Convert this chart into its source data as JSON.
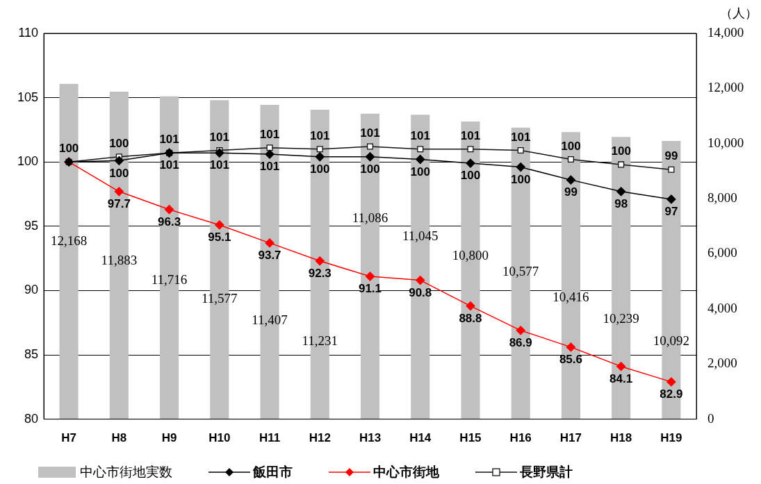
{
  "chart_data": {
    "type": "line",
    "categories": [
      "H7",
      "H8",
      "H9",
      "H10",
      "H11",
      "H12",
      "H13",
      "H14",
      "H15",
      "H16",
      "H17",
      "H18",
      "H19"
    ],
    "y2label": "（人）",
    "ylim": [
      80,
      110
    ],
    "yticks": [
      80,
      85,
      90,
      95,
      100,
      105,
      110
    ],
    "y2lim": [
      0,
      14000
    ],
    "y2ticks": [
      {
        "value": 0,
        "label": "0"
      },
      {
        "value": 2000,
        "label": "2,000"
      },
      {
        "value": 4000,
        "label": "4,000"
      },
      {
        "value": 6000,
        "label": "6,000"
      },
      {
        "value": 8000,
        "label": "8,000"
      },
      {
        "value": 10000,
        "label": "10,000"
      },
      {
        "value": 12000,
        "label": "12,000"
      },
      {
        "value": 14000,
        "label": "14,000"
      }
    ],
    "grid": "y",
    "legend": "bottom",
    "series": [
      {
        "name": "中心市街地実数",
        "type": "bar",
        "axis": "y2",
        "color": "#c0c0c0",
        "values": [
          12168,
          11883,
          11716,
          11577,
          11407,
          11231,
          11086,
          11045,
          10800,
          10577,
          10416,
          10239,
          10092
        ],
        "value_labels": [
          "12,168",
          "11,883",
          "11,716",
          "11,577",
          "11,407",
          "11,231",
          "11,086",
          "11,045",
          "10,800",
          "10,577",
          "10,416",
          "10,239",
          "10,092"
        ]
      },
      {
        "name": "飯田市",
        "color": "#000000",
        "marker": "diamond",
        "values": [
          100,
          100.1,
          100.7,
          100.7,
          100.6,
          100.4,
          100.4,
          100.2,
          99.9,
          99.6,
          98.6,
          97.7,
          97.1
        ],
        "value_labels": [
          null,
          "100",
          "101",
          "101",
          "101",
          "100",
          "100",
          "100",
          "100",
          "100",
          "99",
          "98",
          "97"
        ]
      },
      {
        "name": "中心市街地",
        "color": "#ff0000",
        "marker": "diamond",
        "values": [
          100,
          97.7,
          96.3,
          95.1,
          93.7,
          92.3,
          91.1,
          90.8,
          88.8,
          86.9,
          85.6,
          84.1,
          82.9
        ],
        "value_labels": [
          null,
          "97.7",
          "96.3",
          "95.1",
          "93.7",
          "92.3",
          "91.1",
          "90.8",
          "88.8",
          "86.9",
          "85.6",
          "84.1",
          "82.9"
        ]
      },
      {
        "name": "長野県計",
        "color": "#111111",
        "marker": "square",
        "values": [
          100,
          100.4,
          100.7,
          100.9,
          101.1,
          101.0,
          101.2,
          101.0,
          101.0,
          100.9,
          100.2,
          99.8,
          99.4
        ],
        "value_labels": [
          "100",
          "100",
          "101",
          "101",
          "101",
          "101",
          "101",
          "101",
          "101",
          "101",
          "100",
          "100",
          "99"
        ]
      }
    ]
  }
}
